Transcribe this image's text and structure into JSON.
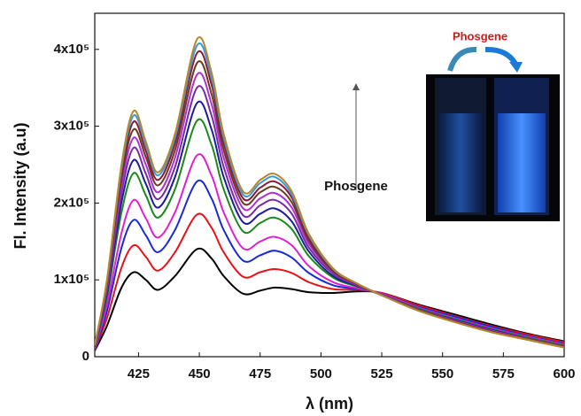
{
  "chart_data": {
    "type": "line",
    "x_label": "λ (nm)",
    "y_label": "Fl. Intensity (a.u)",
    "annotations": [
      "Phosgene",
      "Phosgene"
    ],
    "xlim": [
      407,
      600
    ],
    "xticks": [
      425,
      450,
      475,
      500,
      525,
      550,
      575,
      600
    ],
    "ylim": [
      0,
      447000
    ],
    "yticks": [
      {
        "value": 0,
        "label": "0"
      },
      {
        "value": 100000,
        "label": "1x10⁵"
      },
      {
        "value": 200000,
        "label": "2x10⁵"
      },
      {
        "value": 300000,
        "label": "3x10⁵"
      },
      {
        "value": 400000,
        "label": "4x10⁵"
      }
    ],
    "x": [
      407,
      412,
      418,
      423,
      428,
      433,
      440,
      449,
      455,
      460,
      468,
      475,
      481,
      488,
      495,
      505,
      515,
      525,
      540,
      555,
      570,
      585,
      600
    ],
    "series": [
      {
        "color": "#000000",
        "values": [
          8000,
          40000,
          90000,
          110000,
          100000,
          87000,
          105000,
          140000,
          128000,
          105000,
          82000,
          86000,
          90000,
          88000,
          84000,
          83000,
          85000,
          83000,
          68000,
          55000,
          42000,
          30000,
          20000
        ]
      },
      {
        "color": "#e8121a",
        "values": [
          9000,
          50000,
          116000,
          145000,
          130000,
          112000,
          136000,
          185000,
          168000,
          136000,
          104000,
          110000,
          114000,
          109000,
          97000,
          88000,
          87000,
          83000,
          67000,
          53000,
          40000,
          29000,
          19000
        ]
      },
      {
        "color": "#1a2bd6",
        "values": [
          10000,
          59000,
          142000,
          178000,
          158000,
          136000,
          165000,
          228000,
          206000,
          165000,
          125000,
          132000,
          138000,
          129000,
          109000,
          93000,
          88000,
          82000,
          65000,
          52000,
          39000,
          27000,
          17000
        ]
      },
      {
        "color": "#e020d0",
        "values": [
          11000,
          67000,
          161000,
          204000,
          180000,
          155000,
          188000,
          262000,
          236000,
          188000,
          141000,
          150000,
          156000,
          145000,
          118000,
          97000,
          89000,
          82000,
          64000,
          50000,
          37000,
          26000,
          16000
        ]
      },
      {
        "color": "#1a8a1a",
        "values": [
          12000,
          77000,
          188000,
          239000,
          210000,
          181000,
          218000,
          307000,
          276000,
          218000,
          163000,
          174000,
          181000,
          166000,
          131000,
          103000,
          91000,
          81000,
          63000,
          49000,
          36000,
          25000,
          15000
        ]
      },
      {
        "color": "#1c1c9e",
        "values": [
          13000,
          82000,
          201000,
          256000,
          225000,
          194000,
          234000,
          330000,
          296000,
          234000,
          175000,
          186000,
          193000,
          176000,
          137000,
          105000,
          92000,
          81000,
          62000,
          48000,
          35000,
          24000,
          14000
        ]
      },
      {
        "color": "#7a2aa0",
        "values": [
          13000,
          86000,
          213000,
          272000,
          238000,
          205000,
          247000,
          350000,
          314000,
          247000,
          184000,
          197000,
          204000,
          186000,
          142000,
          108000,
          93000,
          81000,
          62000,
          47000,
          34000,
          24000,
          14000
        ]
      },
      {
        "color": "#b030d8",
        "values": [
          14000,
          90000,
          223000,
          285000,
          250000,
          214000,
          259000,
          367000,
          329000,
          259000,
          193000,
          206000,
          213000,
          194000,
          147000,
          110000,
          93000,
          80000,
          61000,
          47000,
          34000,
          23000,
          13000
        ]
      },
      {
        "color": "#6a3a1a",
        "values": [
          14000,
          93000,
          232000,
          296000,
          260000,
          223000,
          269000,
          382000,
          342000,
          269000,
          200000,
          214000,
          221000,
          201000,
          151000,
          111000,
          94000,
          80000,
          61000,
          46000,
          33000,
          23000,
          13000
        ]
      },
      {
        "color": "#8a1a3a",
        "values": [
          15000,
          96000,
          239000,
          306000,
          268000,
          230000,
          278000,
          395000,
          354000,
          278000,
          206000,
          220000,
          228000,
          207000,
          155000,
          113000,
          94000,
          80000,
          60000,
          46000,
          33000,
          22000,
          12000
        ]
      },
      {
        "color": "#3a9ad8",
        "values": [
          15000,
          98000,
          245000,
          314000,
          275000,
          236000,
          285000,
          405000,
          363000,
          285000,
          211000,
          226000,
          234000,
          211000,
          158000,
          114000,
          95000,
          80000,
          60000,
          45000,
          32000,
          22000,
          12000
        ]
      },
      {
        "color": "#b8862a",
        "values": [
          15000,
          100000,
          250000,
          320000,
          280000,
          240000,
          290000,
          413000,
          370000,
          290000,
          215000,
          230000,
          238000,
          215000,
          160000,
          115000,
          95000,
          80000,
          60000,
          45000,
          32000,
          22000,
          12000
        ]
      }
    ]
  }
}
